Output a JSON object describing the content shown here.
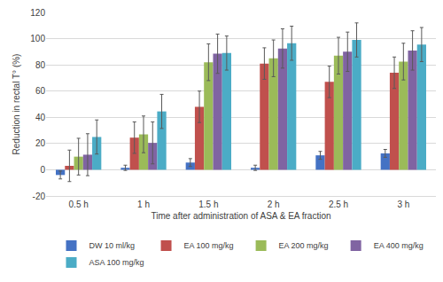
{
  "chart_data": {
    "type": "bar",
    "x_label": "Time after administration of ASA & EA fraction",
    "y_label": "Reduction in rectal T° (%)",
    "categories": [
      "0.5 h",
      "1 h",
      "1.5 h",
      "2 h",
      "2.5 h",
      "3 h"
    ],
    "series": [
      {
        "name": "DW 10 ml/kg",
        "color": "#4472c4",
        "values": [
          -4,
          1.5,
          5.5,
          1.5,
          11,
          12.5
        ],
        "errors": [
          3,
          2,
          3,
          2,
          3,
          3
        ]
      },
      {
        "name": "EA 100 mg/kg",
        "color": "#c0504d",
        "values": [
          3,
          24.5,
          48,
          81,
          67,
          74
        ],
        "errors": [
          12,
          12,
          12,
          12,
          12,
          12
        ]
      },
      {
        "name": "EA 200 mg/kg",
        "color": "#9bbb59",
        "values": [
          10,
          27,
          82,
          85,
          87,
          82.5
        ],
        "errors": [
          14,
          14,
          14,
          14,
          14,
          14
        ]
      },
      {
        "name": "EA 400 mg/kg",
        "color": "#8064a2",
        "values": [
          11.5,
          20.5,
          88.5,
          92.5,
          90,
          91
        ],
        "errors": [
          16,
          16,
          15,
          15,
          15,
          15
        ]
      },
      {
        "name": "ASA 100 mg/kg",
        "color": "#4bacc6",
        "values": [
          25,
          44.5,
          89,
          96.5,
          99,
          95.5
        ],
        "errors": [
          13,
          13,
          13,
          13,
          13,
          13
        ]
      }
    ],
    "ylim": [
      -20,
      120
    ],
    "yticks": [
      -20,
      0,
      20,
      40,
      60,
      80,
      100,
      120
    ],
    "grid": true,
    "legend": "bottom"
  }
}
